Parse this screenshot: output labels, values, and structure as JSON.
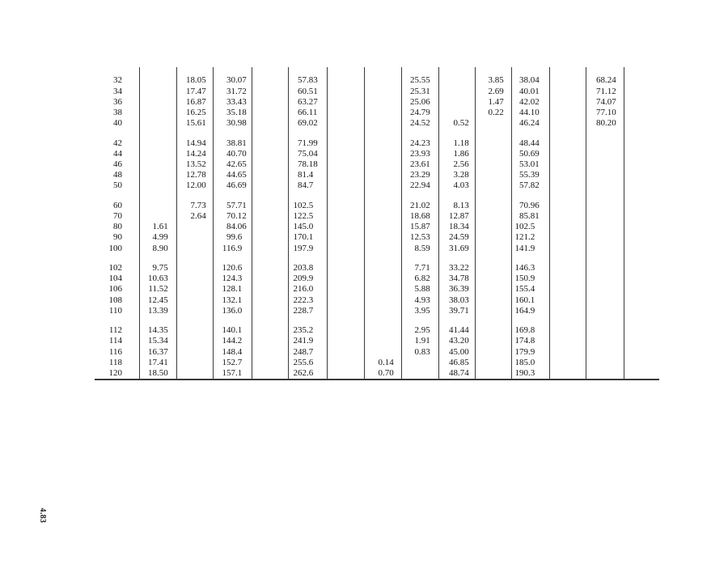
{
  "page": {
    "number_label": "4.83"
  },
  "table": {
    "blocks": [
      {
        "rows": [
          [
            "32",
            "",
            "18.05",
            "30.07",
            "",
            "57.83",
            "",
            "",
            "25.55",
            "",
            "3.85",
            "38.04",
            "",
            "68.24"
          ],
          [
            "34",
            "",
            "17.47",
            "31.72",
            "",
            "60.51",
            "",
            "",
            "25.31",
            "",
            "2.69",
            "40.01",
            "",
            "71.12"
          ],
          [
            "36",
            "",
            "16.87",
            "33.43",
            "",
            "63.27",
            "",
            "",
            "25.06",
            "",
            "1.47",
            "42.02",
            "",
            "74.07"
          ],
          [
            "38",
            "",
            "16.25",
            "35.18",
            "",
            "66.11",
            "",
            "",
            "24.79",
            "",
            "0.22",
            "44.10",
            "",
            "77.10"
          ],
          [
            "40",
            "",
            "15.61",
            "30.98",
            "",
            "69.02",
            "",
            "",
            "24.52",
            "0.52",
            "",
            "46.24",
            "",
            "80.20"
          ]
        ]
      },
      {
        "rows": [
          [
            "42",
            "",
            "14.94",
            "38.81",
            "",
            "71.99",
            "",
            "",
            "24.23",
            "1.18",
            "",
            "48.44",
            "",
            ""
          ],
          [
            "44",
            "",
            "14.24",
            "40.70",
            "",
            "75.04",
            "",
            "",
            "23.93",
            "1.86",
            "",
            "50.69",
            "",
            ""
          ],
          [
            "46",
            "",
            "13.52",
            "42.65",
            "",
            "78.18",
            "",
            "",
            "23.61",
            "2.56",
            "",
            "53.01",
            "",
            ""
          ],
          [
            "48",
            "",
            "12.78",
            "44.65",
            "",
            "81.4",
            "",
            "",
            "23.29",
            "3.28",
            "",
            "55.39",
            "",
            ""
          ],
          [
            "50",
            "",
            "12.00",
            "46.69",
            "",
            "84.7",
            "",
            "",
            "22.94",
            "4.03",
            "",
            "57.82",
            "",
            ""
          ]
        ]
      },
      {
        "rows": [
          [
            "60",
            "",
            "7.73",
            "57.71",
            "",
            "102.5",
            "",
            "",
            "21.02",
            "8.13",
            "",
            "70.96",
            "",
            ""
          ],
          [
            "70",
            "",
            "2.64",
            "70.12",
            "",
            "122.5",
            "",
            "",
            "18.68",
            "12.87",
            "",
            "85.81",
            "",
            ""
          ],
          [
            "80",
            "1.61",
            "",
            "84.06",
            "",
            "145.0",
            "",
            "",
            "15.87",
            "18.34",
            "",
            "102.5",
            "",
            ""
          ],
          [
            "90",
            "4.99",
            "",
            "99.6",
            "",
            "170.1",
            "",
            "",
            "12.53",
            "24.59",
            "",
            "121.2",
            "",
            ""
          ],
          [
            "100",
            "8.90",
            "",
            "116.9",
            "",
            "197.9",
            "",
            "",
            "8.59",
            "31.69",
            "",
            "141.9",
            "",
            ""
          ]
        ]
      },
      {
        "rows": [
          [
            "102",
            "9.75",
            "",
            "120.6",
            "",
            "203.8",
            "",
            "",
            "7.71",
            "33.22",
            "",
            "146.3",
            "",
            ""
          ],
          [
            "104",
            "10.63",
            "",
            "124.3",
            "",
            "209.9",
            "",
            "",
            "6.82",
            "34.78",
            "",
            "150.9",
            "",
            ""
          ],
          [
            "106",
            "11.52",
            "",
            "128.1",
            "",
            "216.0",
            "",
            "",
            "5.88",
            "36.39",
            "",
            "155.4",
            "",
            ""
          ],
          [
            "108",
            "12.45",
            "",
            "132.1",
            "",
            "222.3",
            "",
            "",
            "4.93",
            "38.03",
            "",
            "160.1",
            "",
            ""
          ],
          [
            "110",
            "13.39",
            "",
            "136.0",
            "",
            "228.7",
            "",
            "",
            "3.95",
            "39.71",
            "",
            "164.9",
            "",
            ""
          ]
        ]
      },
      {
        "rows": [
          [
            "112",
            "14.35",
            "",
            "140.1",
            "",
            "235.2",
            "",
            "",
            "2.95",
            "41.44",
            "",
            "169.8",
            "",
            ""
          ],
          [
            "114",
            "15.34",
            "",
            "144.2",
            "",
            "241.9",
            "",
            "",
            "1.91",
            "43.20",
            "",
            "174.8",
            "",
            ""
          ],
          [
            "116",
            "16.37",
            "",
            "148.4",
            "",
            "248.7",
            "",
            "",
            "0.83",
            "45.00",
            "",
            "179.9",
            "",
            ""
          ],
          [
            "118",
            "17.41",
            "",
            "152.7",
            "",
            "255.6",
            "",
            "0.14",
            "",
            "46.85",
            "",
            "185.0",
            "",
            ""
          ],
          [
            "120",
            "18.50",
            "",
            "157.1",
            "",
            "262.6",
            "",
            "0.70",
            "",
            "48.74",
            "",
            "190.3",
            "",
            ""
          ]
        ]
      }
    ]
  }
}
